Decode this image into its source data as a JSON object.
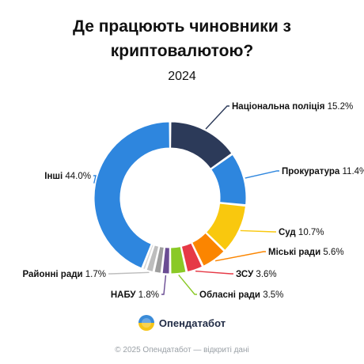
{
  "chart_data": {
    "type": "pie",
    "title": "Де працюють чиновники з криптовалютою?",
    "subtitle": "2024",
    "unit": "%",
    "slices": [
      {
        "label": "Національна поліція",
        "value": 15.2,
        "display": "15.2%",
        "color": "#2c3a59",
        "label_side": "right"
      },
      {
        "label": "Прокуратура",
        "value": 11.4,
        "display": "11.4%",
        "color": "#2e86de",
        "label_side": "right"
      },
      {
        "label": "Суд",
        "value": 10.7,
        "display": "10.7%",
        "color": "#f9c80e",
        "label_side": "right"
      },
      {
        "label": "Міські ради",
        "value": 5.6,
        "display": "5.6%",
        "color": "#fb8500",
        "label_side": "right"
      },
      {
        "label": "ЗСУ",
        "value": 3.6,
        "display": "3.6%",
        "color": "#e63946",
        "label_side": "right"
      },
      {
        "label": "Обласні ради",
        "value": 3.5,
        "display": "3.5%",
        "color": "#8ac926",
        "label_side": "right"
      },
      {
        "label": "НАБУ",
        "value": 1.8,
        "display": "1.8%",
        "color": "#6a4c93",
        "label_side": "left"
      },
      {
        "label": "",
        "value": 1.7,
        "display": "",
        "color": "#9e9e9e",
        "label_side": "none"
      },
      {
        "label": "Районні ради",
        "value": 1.7,
        "display": "1.7%",
        "color": "#bdbdbd",
        "label_side": "left"
      },
      {
        "label": "",
        "value": 0.8,
        "display": "",
        "color": "#d6d6d6",
        "label_side": "none"
      },
      {
        "label": "Інші",
        "value": 44.0,
        "display": "44.0%",
        "color": "#2e86de",
        "label_side": "left"
      }
    ]
  },
  "brand": {
    "name": "Опендатабот",
    "logo_icon": "opendatabot-logo-icon"
  },
  "footer": {
    "text": "© 2025 Опендатабот — відкриті дані"
  }
}
